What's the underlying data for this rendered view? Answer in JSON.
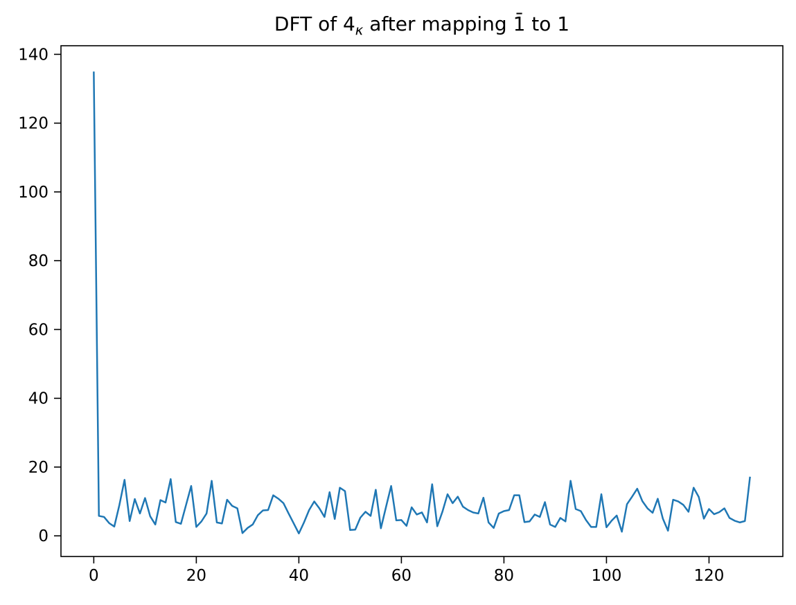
{
  "figure": {
    "background": "#ffffff",
    "text_color": "#000000",
    "title": {
      "full_text": "DFT of 4κ after mapping 1̄ to 1",
      "prefix": "DFT of 4",
      "subscript": "κ",
      "suffix": " after mapping 1̄ to 1"
    }
  },
  "chart_data": {
    "type": "line",
    "title": "DFT of 4κ after mapping 1̄ to 1",
    "xlabel": "",
    "ylabel": "",
    "grid": false,
    "legend": null,
    "line_color": "#1f77b4",
    "line_width": 2.5,
    "axis_color": "#000000",
    "x_ticks": [
      0,
      20,
      40,
      60,
      80,
      100,
      120
    ],
    "y_ticks": [
      0,
      20,
      40,
      60,
      80,
      100,
      120,
      140
    ],
    "xlim": [
      -6.4,
      134.4
    ],
    "ylim": [
      -6.0,
      142.5
    ],
    "x": [
      0,
      1,
      2,
      3,
      4,
      5,
      6,
      7,
      8,
      9,
      10,
      11,
      12,
      13,
      14,
      15,
      16,
      17,
      18,
      19,
      20,
      21,
      22,
      23,
      24,
      25,
      26,
      27,
      28,
      29,
      30,
      31,
      32,
      33,
      34,
      35,
      36,
      37,
      38,
      39,
      40,
      41,
      42,
      43,
      44,
      45,
      46,
      47,
      48,
      49,
      50,
      51,
      52,
      53,
      54,
      55,
      56,
      57,
      58,
      59,
      60,
      61,
      62,
      63,
      64,
      65,
      66,
      67,
      68,
      69,
      70,
      71,
      72,
      73,
      74,
      75,
      76,
      77,
      78,
      79,
      80,
      81,
      82,
      83,
      84,
      85,
      86,
      87,
      88,
      89,
      90,
      91,
      92,
      93,
      94,
      95,
      96,
      97,
      98,
      99,
      100,
      101,
      102,
      103,
      104,
      105,
      106,
      107,
      108,
      109,
      110,
      111,
      112,
      113,
      114,
      115,
      116,
      117,
      118,
      119,
      120,
      121,
      122,
      123,
      124,
      125,
      126,
      127,
      128
    ],
    "y": [
      135,
      5.8,
      5.5,
      3.7,
      2.7,
      9,
      16.3,
      4.3,
      10.7,
      6.5,
      11,
      5.7,
      3.3,
      10.4,
      9.7,
      16.5,
      4,
      3.5,
      9,
      14.5,
      2.6,
      4.2,
      6.5,
      16,
      3.9,
      3.6,
      10.5,
      8.7,
      8,
      0.8,
      2.3,
      3.3,
      6,
      7.4,
      7.5,
      11.8,
      10.8,
      9.5,
      6.5,
      3.6,
      0.7,
      3.9,
      7.5,
      10,
      8,
      5.5,
      12.7,
      4.9,
      14,
      13,
      1.7,
      1.8,
      5.3,
      7,
      5.8,
      13.4,
      2.2,
      8.4,
      14.5,
      4.5,
      4.6,
      2.9,
      8.3,
      6.2,
      6.8,
      3.9,
      15,
      2.8,
      7,
      12.1,
      9.5,
      11.4,
      8.5,
      7.5,
      6.8,
      6.5,
      11.1,
      3.9,
      2.3,
      6.5,
      7.2,
      7.5,
      11.8,
      11.8,
      4,
      4.2,
      6.2,
      5.5,
      9.8,
      3.3,
      2.6,
      5.2,
      4.2,
      16,
      7.8,
      7.2,
      4.6,
      2.6,
      2.6,
      12.1,
      2.5,
      4.4,
      5.9,
      1.2,
      9.2,
      11.4,
      13.7,
      10.1,
      8,
      6.7,
      10.8,
      5,
      1.5,
      10.5,
      10,
      9,
      7,
      14,
      11.3,
      5,
      7.8,
      6.3,
      6.9,
      8,
      5.2,
      4.4,
      3.9,
      4.3,
      17.2
    ]
  }
}
